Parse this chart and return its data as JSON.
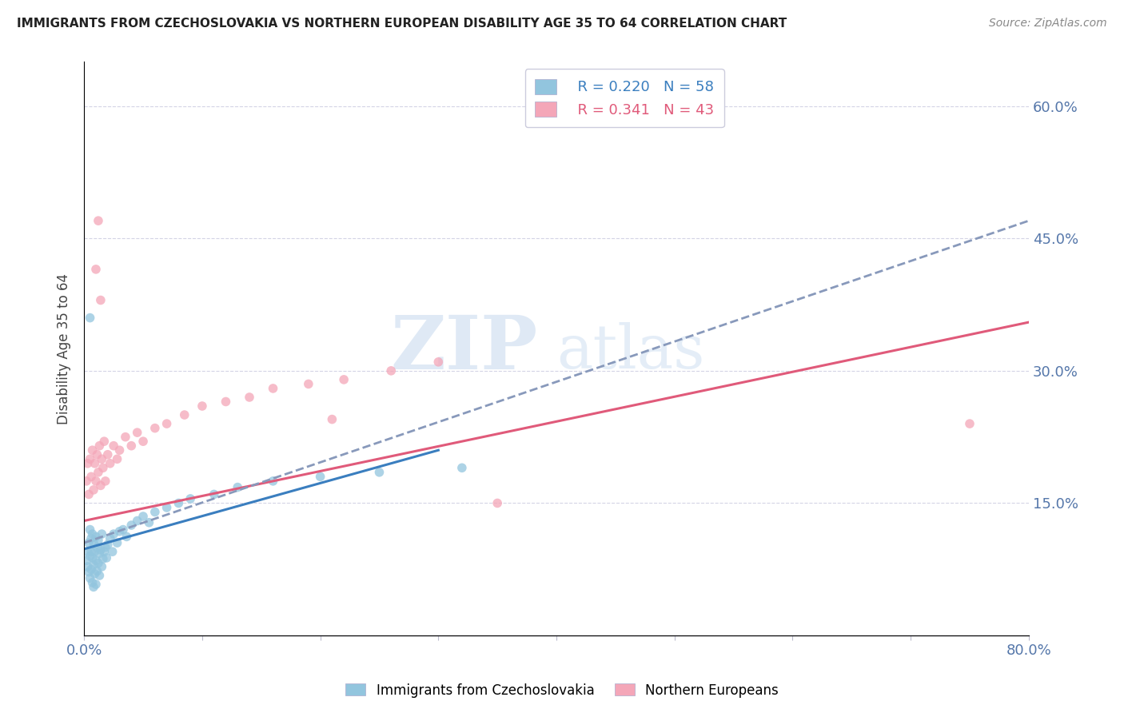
{
  "title": "IMMIGRANTS FROM CZECHOSLOVAKIA VS NORTHERN EUROPEAN DISABILITY AGE 35 TO 64 CORRELATION CHART",
  "source": "Source: ZipAtlas.com",
  "ylabel": "Disability Age 35 to 64",
  "xlim": [
    0.0,
    0.8
  ],
  "ylim": [
    0.0,
    0.65
  ],
  "xticks": [
    0.0,
    0.1,
    0.2,
    0.3,
    0.4,
    0.5,
    0.6,
    0.7,
    0.8
  ],
  "xticklabels": [
    "0.0%",
    "",
    "",
    "",
    "",
    "",
    "",
    "",
    "80.0%"
  ],
  "yticks": [
    0.0,
    0.15,
    0.3,
    0.45,
    0.6
  ],
  "yticklabels": [
    "",
    "15.0%",
    "30.0%",
    "45.0%",
    "60.0%"
  ],
  "blue_R": 0.22,
  "blue_N": 58,
  "pink_R": 0.341,
  "pink_N": 43,
  "blue_color": "#92c5de",
  "pink_color": "#f4a6b8",
  "blue_line_color": "#3a7ebf",
  "pink_line_color": "#e05a7a",
  "dashed_line_color": "#8899bb",
  "watermark_zip": "ZIP",
  "watermark_atlas": "atlas",
  "legend_label_blue": "Immigrants from Czechoslovakia",
  "legend_label_pink": "Northern Europeans",
  "blue_scatter_x": [
    0.002,
    0.003,
    0.003,
    0.004,
    0.004,
    0.005,
    0.005,
    0.005,
    0.006,
    0.006,
    0.006,
    0.007,
    0.007,
    0.007,
    0.008,
    0.008,
    0.008,
    0.009,
    0.009,
    0.01,
    0.01,
    0.01,
    0.011,
    0.011,
    0.012,
    0.012,
    0.013,
    0.013,
    0.014,
    0.015,
    0.015,
    0.016,
    0.017,
    0.018,
    0.019,
    0.02,
    0.022,
    0.024,
    0.025,
    0.028,
    0.03,
    0.033,
    0.036,
    0.04,
    0.045,
    0.05,
    0.055,
    0.06,
    0.07,
    0.08,
    0.09,
    0.11,
    0.13,
    0.16,
    0.2,
    0.25,
    0.32,
    0.005
  ],
  "blue_scatter_y": [
    0.085,
    0.095,
    0.078,
    0.105,
    0.072,
    0.12,
    0.09,
    0.065,
    0.11,
    0.095,
    0.075,
    0.115,
    0.088,
    0.06,
    0.105,
    0.08,
    0.055,
    0.095,
    0.07,
    0.112,
    0.085,
    0.058,
    0.1,
    0.073,
    0.108,
    0.082,
    0.093,
    0.068,
    0.097,
    0.115,
    0.078,
    0.087,
    0.095,
    0.1,
    0.088,
    0.103,
    0.11,
    0.095,
    0.115,
    0.105,
    0.118,
    0.12,
    0.112,
    0.125,
    0.13,
    0.135,
    0.128,
    0.14,
    0.145,
    0.15,
    0.155,
    0.16,
    0.168,
    0.175,
    0.18,
    0.185,
    0.19,
    0.36
  ],
  "pink_scatter_x": [
    0.002,
    0.003,
    0.004,
    0.005,
    0.006,
    0.007,
    0.008,
    0.009,
    0.01,
    0.011,
    0.012,
    0.013,
    0.014,
    0.015,
    0.016,
    0.017,
    0.018,
    0.02,
    0.022,
    0.025,
    0.028,
    0.03,
    0.035,
    0.04,
    0.045,
    0.05,
    0.06,
    0.07,
    0.085,
    0.1,
    0.12,
    0.14,
    0.16,
    0.19,
    0.22,
    0.26,
    0.3,
    0.01,
    0.012,
    0.014,
    0.35,
    0.21,
    0.75
  ],
  "pink_scatter_y": [
    0.175,
    0.195,
    0.16,
    0.2,
    0.18,
    0.21,
    0.165,
    0.195,
    0.175,
    0.205,
    0.185,
    0.215,
    0.17,
    0.2,
    0.19,
    0.22,
    0.175,
    0.205,
    0.195,
    0.215,
    0.2,
    0.21,
    0.225,
    0.215,
    0.23,
    0.22,
    0.235,
    0.24,
    0.25,
    0.26,
    0.265,
    0.27,
    0.28,
    0.285,
    0.29,
    0.3,
    0.31,
    0.415,
    0.47,
    0.38,
    0.15,
    0.245,
    0.24
  ]
}
